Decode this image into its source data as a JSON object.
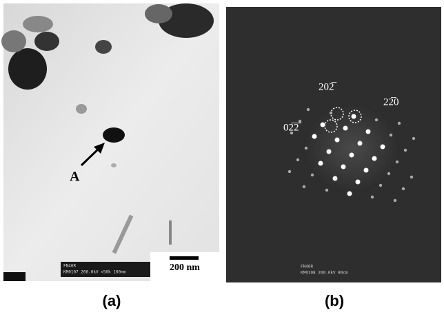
{
  "panel_a": {
    "particle_label": "A",
    "scale_bar": "200 nm",
    "footer": [
      "FN46R",
      "KM0107 200.0kV ×50k 100nm"
    ],
    "caption": "(a)"
  },
  "panel_b": {
    "spot_labels": [
      "202̅",
      "22̅0",
      "02̅2̅"
    ],
    "footer": [
      "FN46R",
      "KM0108 200.0kV 80cm"
    ],
    "caption": "(b)"
  }
}
